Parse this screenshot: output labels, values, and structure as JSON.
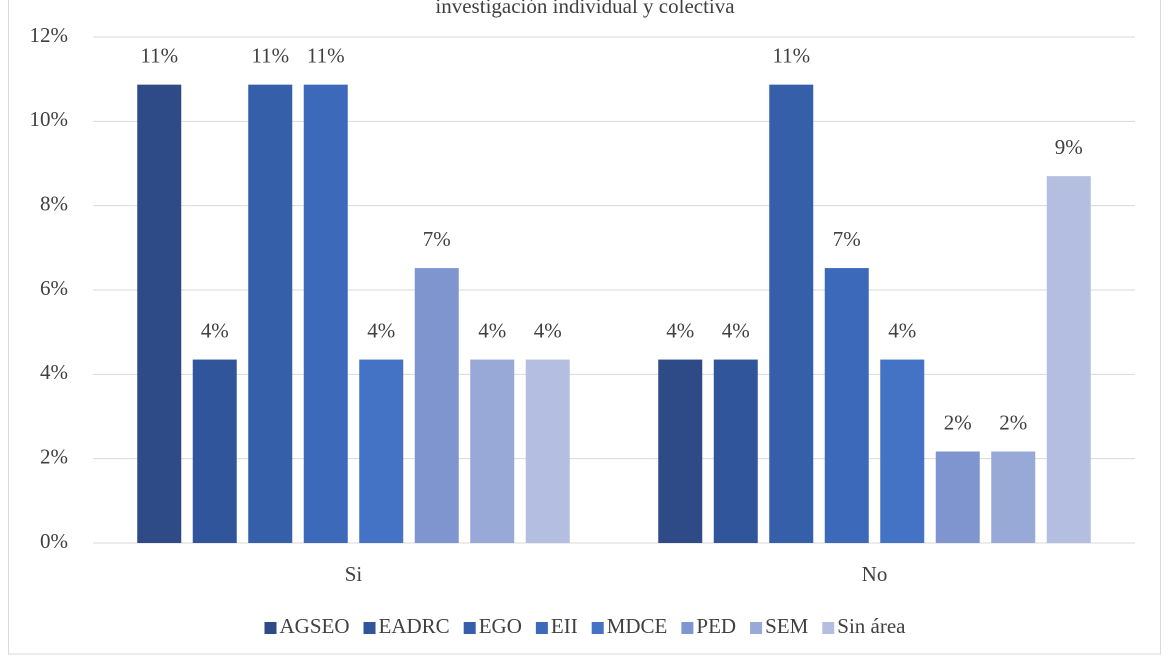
{
  "chart_data": {
    "type": "bar",
    "title": "investigación individual y colectiva",
    "categories": [
      "Si",
      "No"
    ],
    "series": [
      {
        "name": "AGSEO",
        "color": "#2e4a87",
        "values": [
          10.87,
          4.35
        ],
        "value_labels": [
          "11%",
          "4%"
        ]
      },
      {
        "name": "EADRC",
        "color": "#31559a",
        "values": [
          4.35,
          4.35
        ],
        "value_labels": [
          "4%",
          "4%"
        ]
      },
      {
        "name": "EGO",
        "color": "#365fa9",
        "values": [
          10.87,
          10.87
        ],
        "value_labels": [
          "11%",
          "11%"
        ]
      },
      {
        "name": "EII",
        "color": "#3c69ba",
        "values": [
          10.87,
          6.52
        ],
        "value_labels": [
          "11%",
          "7%"
        ]
      },
      {
        "name": "MDCE",
        "color": "#4472c4",
        "values": [
          4.35,
          4.35
        ],
        "value_labels": [
          "4%",
          "4%"
        ]
      },
      {
        "name": "PED",
        "color": "#7f95d0",
        "values": [
          6.52,
          2.17
        ],
        "value_labels": [
          "7%",
          "2%"
        ]
      },
      {
        "name": "SEM",
        "color": "#98a8d7",
        "values": [
          4.35,
          2.17
        ],
        "value_labels": [
          "4%",
          "2%"
        ]
      },
      {
        "name": "Sin área",
        "color": "#b4bee0",
        "values": [
          4.35,
          8.7
        ],
        "value_labels": [
          "4%",
          "9%"
        ]
      }
    ],
    "ylim": [
      0,
      12
    ],
    "yticks": [
      {
        "value": 0,
        "label": "0%"
      },
      {
        "value": 2,
        "label": "2%"
      },
      {
        "value": 4,
        "label": "4%"
      },
      {
        "value": 6,
        "label": "6%"
      },
      {
        "value": 8,
        "label": "8%"
      },
      {
        "value": 10,
        "label": "10%"
      },
      {
        "value": 12,
        "label": "12%"
      }
    ],
    "grid": true,
    "legend": "bottom"
  }
}
